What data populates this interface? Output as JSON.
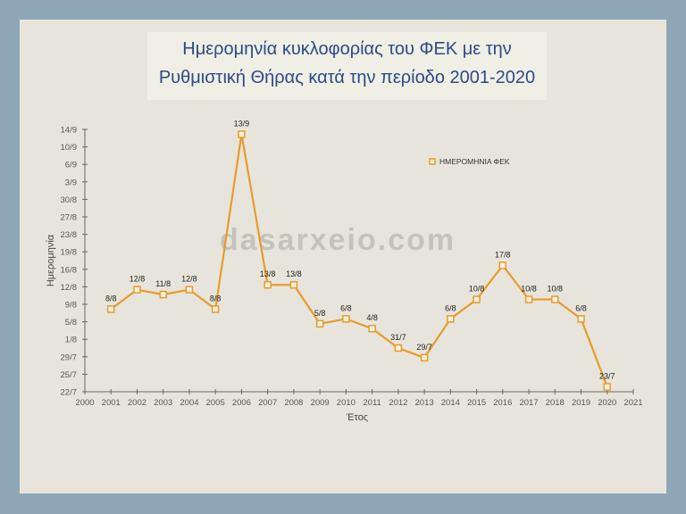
{
  "title_lines": [
    "Ημερομηνία κυκλοφορίας του ΦΕΚ με την",
    "Ρυθμιστική Θήρας κατά την περίοδο 2001-2020"
  ],
  "watermark": "dasarxeio.com",
  "chart_data": {
    "type": "line",
    "title": "Ημερομηνία κυκλοφορίας του ΦΕΚ με την Ρυθμιστική Θήρας κατά την περίοδο 2001-2020",
    "xlabel": "Έτος",
    "ylabel": "Ημερομηνία",
    "xlim": [
      2000,
      2021
    ],
    "ylim": [
      "22/7",
      "14/9"
    ],
    "x_ticks": [
      2000,
      2001,
      2002,
      2003,
      2004,
      2005,
      2006,
      2007,
      2008,
      2009,
      2010,
      2011,
      2012,
      2013,
      2014,
      2015,
      2016,
      2017,
      2018,
      2019,
      2020,
      2021
    ],
    "y_ticks": [
      "22/7",
      "25/7",
      "29/7",
      "1/8",
      "5/8",
      "9/8",
      "12/8",
      "16/8",
      "19/8",
      "23/8",
      "27/8",
      "30/8",
      "3/9",
      "6/9",
      "10/9",
      "14/9"
    ],
    "legend_position": "top-right",
    "grid": false,
    "series": [
      {
        "name": "ΗΜΕΡΟΜΗΝΙΑ ΦΕΚ",
        "color": "#e89a2c",
        "x": [
          2001,
          2002,
          2003,
          2004,
          2005,
          2006,
          2007,
          2008,
          2009,
          2010,
          2011,
          2012,
          2013,
          2014,
          2015,
          2016,
          2017,
          2018,
          2019,
          2020
        ],
        "values": [
          "8/8",
          "12/8",
          "11/8",
          "12/8",
          "8/8",
          "13/9",
          "13/8",
          "13/8",
          "5/8",
          "6/8",
          "4/8",
          "31/7",
          "29/7",
          "6/8",
          "10/8",
          "17/8",
          "10/8",
          "10/8",
          "6/8",
          "23/7"
        ]
      }
    ]
  }
}
